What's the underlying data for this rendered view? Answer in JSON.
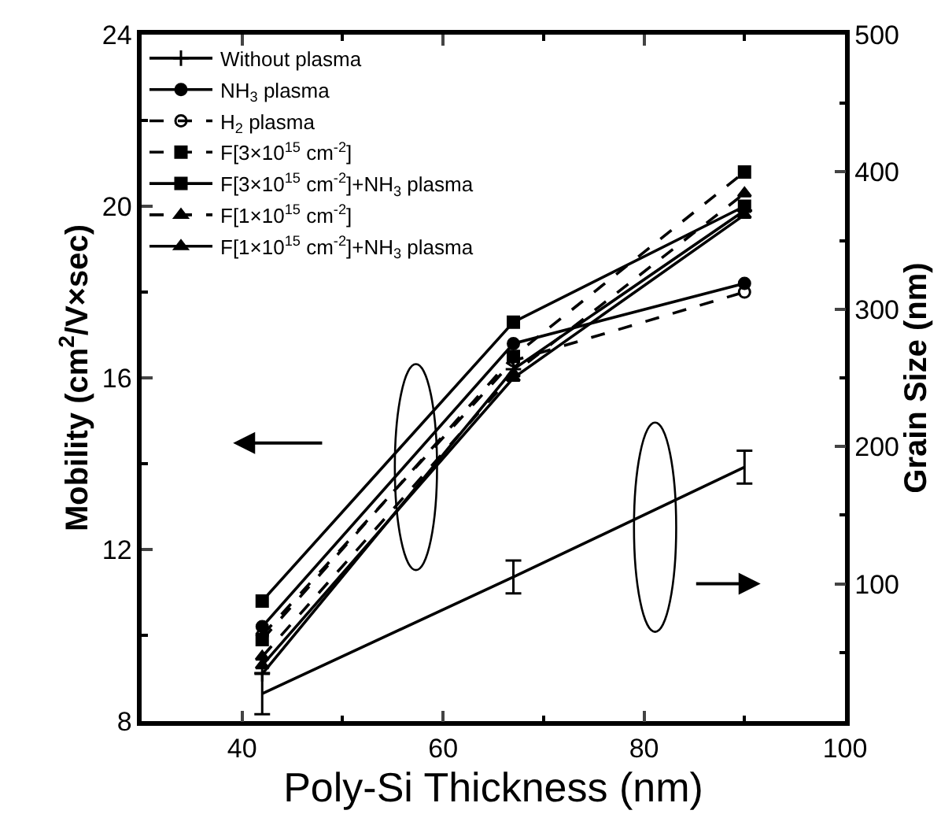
{
  "chart_data": {
    "type": "line",
    "xlabel": "Poly-Si Thickness (nm)",
    "ylabel": "Mobility (cm$^{2}$/V×sec)",
    "y2label": "Grain Size (nm)",
    "x": [
      42,
      67,
      90
    ],
    "xlim": [
      30,
      100
    ],
    "xticks": [
      40,
      60,
      80,
      100
    ],
    "ylim": [
      8,
      24
    ],
    "yticks": [
      8,
      12,
      16,
      20,
      24
    ],
    "y2lim": [
      0,
      500
    ],
    "y2ticks": [
      100,
      200,
      300,
      400,
      500
    ],
    "legend": "top left",
    "series": [
      {
        "name": "Without plasma",
        "color": "#000000",
        "marker": "cross",
        "line_style": "solid",
        "values": [
          9.1,
          16.2,
          19.9
        ]
      },
      {
        "name": "NH$_{3}$ plasma",
        "color": "#000000",
        "marker": "circle",
        "line_style": "solid",
        "values": [
          10.2,
          16.8,
          18.2
        ]
      },
      {
        "name": "H$_{2}$ plasma",
        "color": "#000000",
        "marker": "circle-open",
        "line_style": "dashed",
        "values": [
          10.0,
          16.4,
          18.0
        ]
      },
      {
        "name": "F[3×10$^{15}$ cm$^{-2}$]",
        "color": "#000000",
        "marker": "square",
        "line_style": "dashed",
        "values": [
          9.9,
          16.5,
          20.8
        ]
      },
      {
        "name": "F[3×10$^{15}$ cm$^{-2}$]+NH$_{3}$ plasma",
        "color": "#000000",
        "marker": "square",
        "line_style": "solid",
        "values": [
          10.8,
          17.3,
          20.0
        ]
      },
      {
        "name": "F[1×10$^{15}$ cm$^{-2}$]",
        "color": "#000000",
        "marker": "triangle",
        "line_style": "dashed",
        "values": [
          9.5,
          16.1,
          20.3
        ]
      },
      {
        "name": "F[1×10$^{15}$ cm$^{-2}$]+NH$_{3}$ plasma",
        "color": "#000000",
        "marker": "triangle",
        "line_style": "solid",
        "values": [
          9.3,
          16.0,
          19.8
        ]
      },
      {
        "color": "#000000",
        "marker": "none",
        "line_style": "solid",
        "axis": "y2",
        "values": [
          20,
          105,
          185
        ],
        "errors": [
          15,
          12,
          12
        ]
      }
    ]
  }
}
